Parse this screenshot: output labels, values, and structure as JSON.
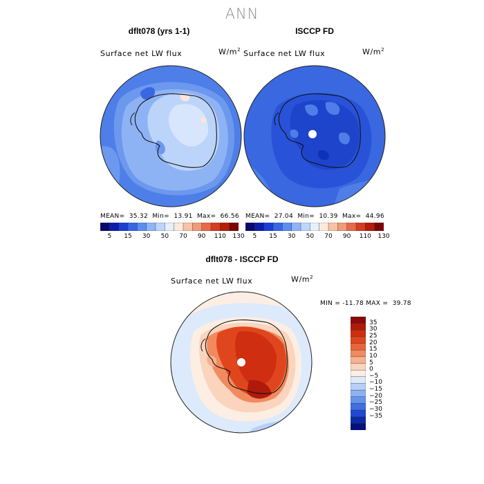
{
  "title": "ANN",
  "panels": [
    {
      "title": "dflt078 (yrs 1-1)",
      "var": "Surface net LW flux",
      "units": "W/m",
      "units_sup": "2",
      "mean": "35.32",
      "min": "13.91",
      "max": "66.56"
    },
    {
      "title": "ISCCP FD",
      "var": "Surface net LW flux",
      "units": "W/m",
      "units_sup": "2",
      "mean": "27.04",
      "min": "10.39",
      "max": "44.96"
    }
  ],
  "diff": {
    "title": "dflt078 - ISCCP FD",
    "var": "Surface net LW flux",
    "units": "W/m",
    "units_sup": "2",
    "min": "-11.78",
    "max": "39.78"
  },
  "labels": {
    "mean": "MEAN=",
    "min": "Min=",
    "max": "Max=",
    "min2": "MIN =",
    "max2": "MAX ="
  },
  "chart_data": [
    {
      "type": "heatmap",
      "title": "dflt078 (yrs 1-1)",
      "subtitle": "Surface net LW flux",
      "units": "W/m2",
      "stats": {
        "mean": 35.32,
        "min": 13.91,
        "max": 66.56
      },
      "colorbar_ticks": [
        "5",
        "15",
        "30",
        "50",
        "70",
        "90",
        "110",
        "130"
      ],
      "colorbar_colors": [
        "#0a0a6e",
        "#0c1ea8",
        "#1a3fd6",
        "#3566e6",
        "#5b8ef0",
        "#8db4f6",
        "#bcd6fb",
        "#e6f0fd",
        "#fde9dc",
        "#f9c2a4",
        "#f19a77",
        "#e66a48",
        "#d43d20",
        "#b51c0a",
        "#7a0606"
      ]
    },
    {
      "type": "heatmap",
      "title": "ISCCP FD",
      "subtitle": "Surface net LW flux",
      "units": "W/m2",
      "stats": {
        "mean": 27.04,
        "min": 10.39,
        "max": 44.96
      },
      "colorbar_ticks": [
        "5",
        "15",
        "30",
        "50",
        "70",
        "90",
        "110",
        "130"
      ]
    },
    {
      "type": "heatmap",
      "title": "dflt078 - ISCCP FD",
      "subtitle": "Surface net LW flux",
      "units": "W/m2",
      "stats": {
        "min": -11.78,
        "max": 39.78
      },
      "colorbar_ticks": [
        "35",
        "30",
        "25",
        "20",
        "15",
        "10",
        "5",
        "0",
        "-5",
        "-10",
        "-15",
        "-20",
        "-25",
        "-30",
        "-35"
      ],
      "colorbar_colors": [
        "#8b0a0a",
        "#b01a0a",
        "#cf2e10",
        "#e0461e",
        "#ea6538",
        "#f18b5f",
        "#f6b18f",
        "#fbd4bd",
        "#fdeee3",
        "#ddeafb",
        "#b6d0f8",
        "#8cb2f2",
        "#6592ea",
        "#3f6fe0",
        "#2049cf",
        "#0c2aa8",
        "#06107a"
      ]
    }
  ]
}
